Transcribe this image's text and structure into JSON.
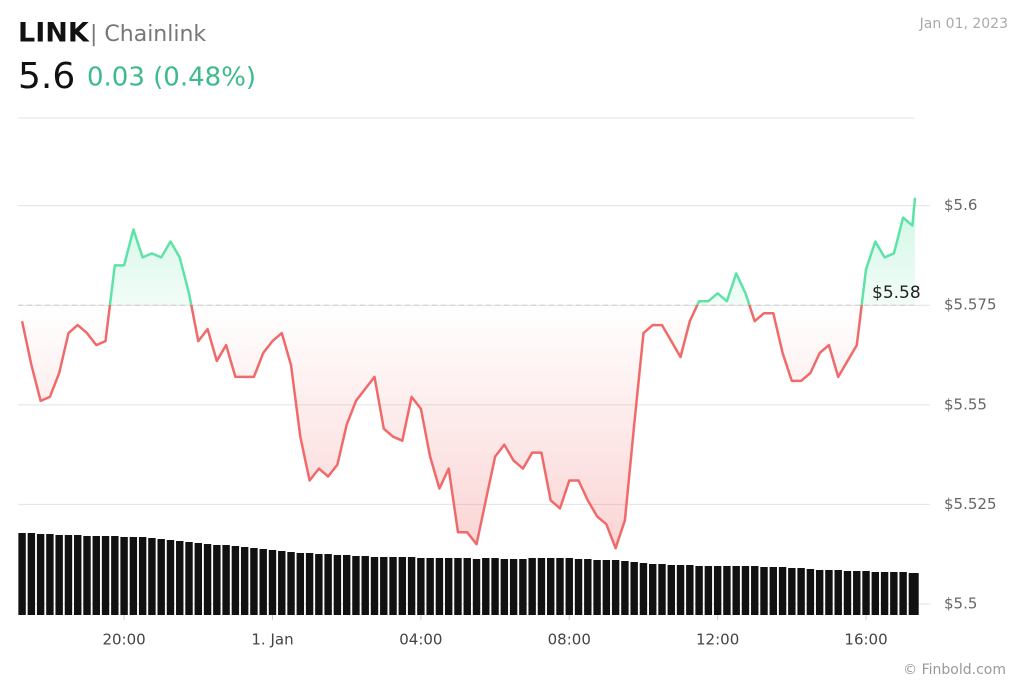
{
  "chart_data": {
    "type": "line",
    "title": "LINK",
    "subtitle": "| Chainlink",
    "price": "5.6",
    "change": "0.03 (0.48%)",
    "date": "Jan 01, 2023",
    "credit": "© Finbold.com",
    "reference": 5.575,
    "reference_label": "$5.58",
    "up_color": "#5ee3a6",
    "down_color": "#f06a6a",
    "volume_color": "#111111",
    "grid": true,
    "xlim": [
      -6.86,
      17.32
    ],
    "xticks": [
      {
        "value": -4,
        "label": "20:00"
      },
      {
        "value": 0,
        "label": "1. Jan"
      },
      {
        "value": 4,
        "label": "04:00"
      },
      {
        "value": 8,
        "label": "08:00"
      },
      {
        "value": 12,
        "label": "12:00"
      },
      {
        "value": 16,
        "label": "16:00"
      }
    ],
    "ylim": [
      5.5,
      5.622
    ],
    "yticks": [
      {
        "value": 5.5,
        "label": "$5.5"
      },
      {
        "value": 5.525,
        "label": "$5.525"
      },
      {
        "value": 5.55,
        "label": "$5.55"
      },
      {
        "value": 5.575,
        "label": "$5.575"
      },
      {
        "value": 5.6,
        "label": "$5.6"
      }
    ],
    "x": [
      -6.75,
      -6.5,
      -6.25,
      -6,
      -5.75,
      -5.5,
      -5.25,
      -5,
      -4.75,
      -4.5,
      -4.25,
      -4,
      -3.75,
      -3.5,
      -3.25,
      -3,
      -2.75,
      -2.5,
      -2.25,
      -2,
      -1.75,
      -1.5,
      -1.25,
      -1,
      -0.75,
      -0.5,
      -0.25,
      0,
      0.25,
      0.5,
      0.75,
      1,
      1.25,
      1.5,
      1.75,
      2,
      2.25,
      2.5,
      2.75,
      3,
      3.25,
      3.5,
      3.75,
      4,
      4.25,
      4.5,
      4.75,
      5,
      5.25,
      5.5,
      5.75,
      6,
      6.25,
      6.5,
      6.75,
      7,
      7.25,
      7.5,
      7.75,
      8,
      8.25,
      8.5,
      8.75,
      9,
      9.25,
      9.5,
      9.75,
      10,
      10.25,
      10.5,
      10.75,
      11,
      11.25,
      11.5,
      11.75,
      12,
      12.25,
      12.5,
      12.75,
      13,
      13.25,
      13.5,
      13.75,
      14,
      14.25,
      14.5,
      14.75,
      15,
      15.25,
      15.5,
      15.75,
      16,
      16.25,
      16.5,
      16.75,
      17,
      17.25,
      17.32
    ],
    "values": [
      5.571,
      5.56,
      5.551,
      5.552,
      5.558,
      5.568,
      5.57,
      5.568,
      5.565,
      5.566,
      5.585,
      5.585,
      5.594,
      5.587,
      5.588,
      5.587,
      5.591,
      5.587,
      5.578,
      5.566,
      5.569,
      5.561,
      5.565,
      5.557,
      5.557,
      5.557,
      5.563,
      5.566,
      5.568,
      5.56,
      5.542,
      5.531,
      5.534,
      5.532,
      5.535,
      5.545,
      5.551,
      5.554,
      5.557,
      5.544,
      5.542,
      5.541,
      5.552,
      5.549,
      5.537,
      5.529,
      5.534,
      5.518,
      5.518,
      5.515,
      5.526,
      5.537,
      5.54,
      5.536,
      5.534,
      5.538,
      5.538,
      5.526,
      5.524,
      5.531,
      5.531,
      5.526,
      5.522,
      5.52,
      5.514,
      5.521,
      5.545,
      5.568,
      5.57,
      5.57,
      5.566,
      5.562,
      5.571,
      5.576,
      5.576,
      5.578,
      5.576,
      5.583,
      5.578,
      5.571,
      5.573,
      5.573,
      5.563,
      5.556,
      5.556,
      5.558,
      5.563,
      5.565,
      5.557,
      5.561,
      5.565,
      5.584,
      5.591,
      5.587,
      5.588,
      5.597,
      5.595,
      5.602
    ],
    "volume": [
      82,
      82,
      81,
      81,
      80,
      80,
      80,
      79,
      79,
      79,
      79,
      78,
      78,
      78,
      77,
      76,
      75,
      74,
      73,
      72,
      71,
      70,
      70,
      69,
      68,
      67,
      66,
      65,
      64,
      63,
      62,
      62,
      61,
      61,
      60,
      60,
      59,
      59,
      58,
      58,
      58,
      58,
      58,
      57,
      57,
      57,
      57,
      57,
      57,
      56,
      57,
      57,
      56,
      56,
      56,
      57,
      57,
      57,
      57,
      57,
      56,
      56,
      55,
      55,
      55,
      54,
      53,
      52,
      51,
      51,
      50,
      50,
      50,
      49,
      49,
      49,
      49,
      49,
      49,
      49,
      48,
      48,
      48,
      47,
      47,
      46,
      45,
      45,
      45,
      44,
      44,
      44,
      43,
      43,
      43,
      43,
      42,
      42
    ]
  }
}
